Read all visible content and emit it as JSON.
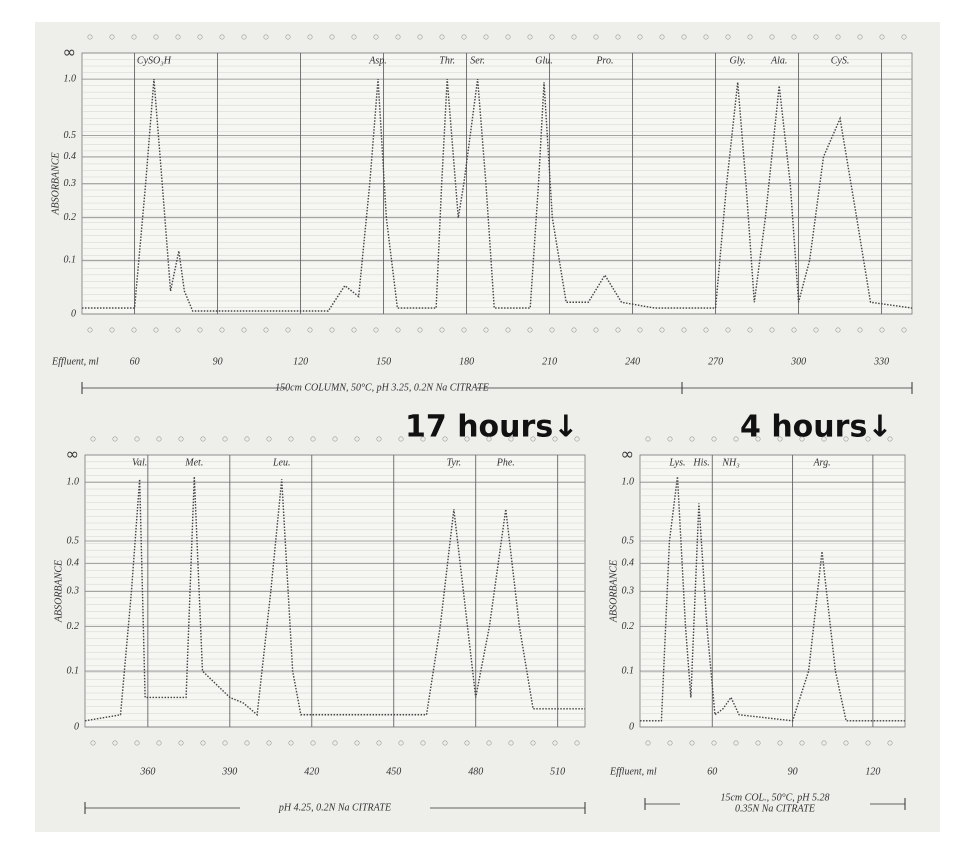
{
  "chart_data": [
    {
      "type": "line",
      "y_label": "ABSORBANCE",
      "x_label": "Effluent, ml",
      "y_top_label": "∞",
      "scale": "absorbance",
      "grid": true,
      "color": "#444444",
      "x": [
        41,
        60,
        64,
        67,
        70,
        73,
        76,
        78,
        81,
        130,
        136,
        141,
        145,
        148,
        151,
        155,
        169,
        171,
        173,
        177,
        179,
        184,
        187,
        190,
        203,
        206,
        208,
        211,
        216,
        224,
        230,
        236,
        248,
        270,
        274,
        278,
        281,
        284,
        288,
        293,
        297,
        300,
        304,
        309,
        315,
        321,
        326,
        341
      ],
      "values": [
        0.01,
        0.01,
        0.3,
        1.0,
        0.3,
        0.04,
        0.12,
        0.04,
        0.005,
        0.005,
        0.05,
        0.03,
        0.3,
        1.0,
        0.2,
        0.01,
        0.01,
        0.3,
        1.0,
        0.2,
        0.3,
        1.0,
        0.3,
        0.01,
        0.01,
        0.3,
        0.95,
        0.2,
        0.02,
        0.02,
        0.07,
        0.02,
        0.01,
        0.01,
        0.3,
        0.95,
        0.3,
        0.02,
        0.2,
        0.9,
        0.3,
        0.02,
        0.1,
        0.4,
        0.6,
        0.2,
        0.02,
        0.01
      ],
      "xlim": [
        41,
        341
      ],
      "xticks": [
        60,
        90,
        120,
        150,
        180,
        210,
        240,
        270,
        300,
        330
      ],
      "ylim": [
        0,
        1
      ],
      "yticks": [
        0,
        0.1,
        0.2,
        0.3,
        0.4,
        0.5,
        {
          "value": 1,
          "label": "1.0"
        }
      ],
      "peak_labels": [
        {
          "label": "CySO₃H",
          "x": 67
        },
        {
          "label": "Asp.",
          "x": 148
        },
        {
          "label": "Thr.",
          "x": 173
        },
        {
          "label": "Ser.",
          "x": 184
        },
        {
          "label": "Glu.",
          "x": 208
        },
        {
          "label": "Pro.",
          "x": 230
        },
        {
          "label": "Gly.",
          "x": 278
        },
        {
          "label": "Ala.",
          "x": 293
        },
        {
          "label": "CyS.",
          "x": 315
        }
      ],
      "footer": [
        "150cm COLUMN, 50°C, pH 3.25, 0.2N Na CITRATE"
      ]
    },
    {
      "type": "line",
      "y_label": "ABSORBANCE",
      "y_top_label": "∞",
      "scale": "absorbance",
      "grid": true,
      "color": "#444444",
      "x": [
        337,
        350,
        354,
        357,
        359,
        368,
        374,
        377,
        380,
        390,
        395,
        400,
        405,
        409,
        413,
        416,
        462,
        467,
        472,
        477,
        480,
        485,
        491,
        496,
        501,
        520
      ],
      "values": [
        0.01,
        0.02,
        0.3,
        1.05,
        0.05,
        0.05,
        0.05,
        1.1,
        0.1,
        0.05,
        0.04,
        0.02,
        0.3,
        1.05,
        0.1,
        0.02,
        0.02,
        0.2,
        0.7,
        0.2,
        0.05,
        0.2,
        0.7,
        0.2,
        0.03,
        0.03
      ],
      "xlim": [
        337,
        520
      ],
      "xticks": [
        360,
        390,
        420,
        450,
        480,
        510
      ],
      "ylim": [
        0,
        1
      ],
      "yticks": [
        0,
        0.1,
        0.2,
        0.3,
        0.4,
        0.5,
        {
          "value": 1,
          "label": "1.0"
        }
      ],
      "peak_labels": [
        {
          "label": "Val.",
          "x": 357
        },
        {
          "label": "Met.",
          "x": 377
        },
        {
          "label": "Leu.",
          "x": 409
        },
        {
          "label": "Tyr.",
          "x": 472
        },
        {
          "label": "Phe.",
          "x": 491
        }
      ],
      "footer": [
        "pH 4.25, 0.2N Na CITRATE"
      ]
    },
    {
      "type": "line",
      "y_label": "ABSORBANCE",
      "x_label": "Effluent, ml",
      "y_top_label": "∞",
      "scale": "absorbance",
      "grid": true,
      "color": "#444444",
      "x": [
        33,
        41,
        44,
        47,
        50,
        52,
        55,
        58,
        61,
        64,
        67,
        70,
        90,
        96,
        101,
        106,
        110,
        132
      ],
      "values": [
        0.01,
        0.01,
        0.5,
        1.1,
        0.2,
        0.05,
        0.75,
        0.2,
        0.02,
        0.03,
        0.05,
        0.02,
        0.01,
        0.1,
        0.45,
        0.1,
        0.01,
        0.01
      ],
      "xlim": [
        33,
        132
      ],
      "xticks": [
        60,
        90,
        120
      ],
      "ylim": [
        0,
        1
      ],
      "yticks": [
        0,
        0.1,
        0.2,
        0.3,
        0.4,
        0.5,
        {
          "value": 1,
          "label": "1.0"
        }
      ],
      "peak_labels": [
        {
          "label": "Lys.",
          "x": 47
        },
        {
          "label": "His.",
          "x": 56
        },
        {
          "label": "NH₃",
          "x": 67
        },
        {
          "label": "Arg.",
          "x": 101
        }
      ],
      "footer": [
        "15cm COL., 50°C, pH 5.28",
        "0.35N Na CITRATE"
      ]
    }
  ],
  "annotations": [
    "17 hours↓",
    "4 hours↓"
  ]
}
